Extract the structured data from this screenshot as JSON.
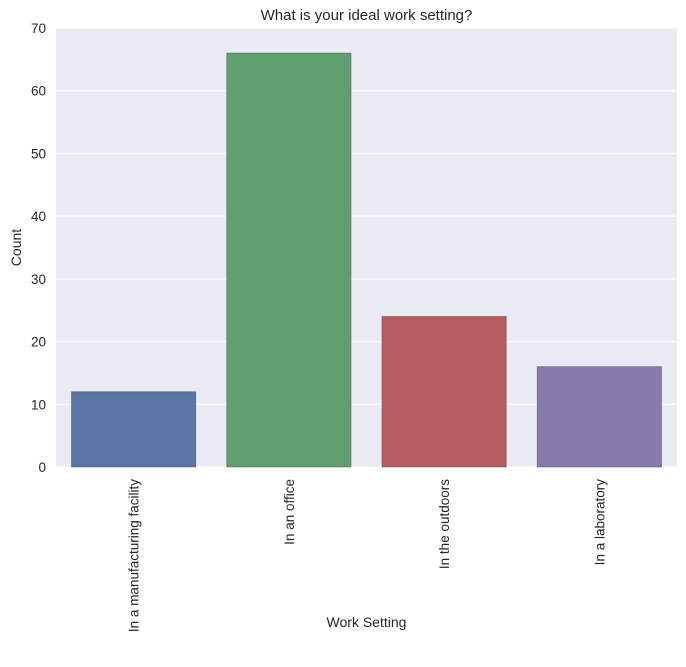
{
  "chart_data": {
    "type": "bar",
    "title": "What is your ideal work setting?",
    "xlabel": "Work Setting",
    "ylabel": "Count",
    "categories": [
      "In a manufacturing facility",
      "In an office",
      "In the outdoors",
      "In a laboratory"
    ],
    "values": [
      12,
      66,
      24,
      16
    ],
    "ylim": [
      0,
      70
    ],
    "yticks": [
      0,
      10,
      20,
      30,
      40,
      50,
      60,
      70
    ],
    "grid": true,
    "colors": [
      "#5875a4",
      "#5f9e6e",
      "#b55d60",
      "#857aab"
    ],
    "background": "#eaeaf2",
    "grid_color": "#ffffff"
  }
}
